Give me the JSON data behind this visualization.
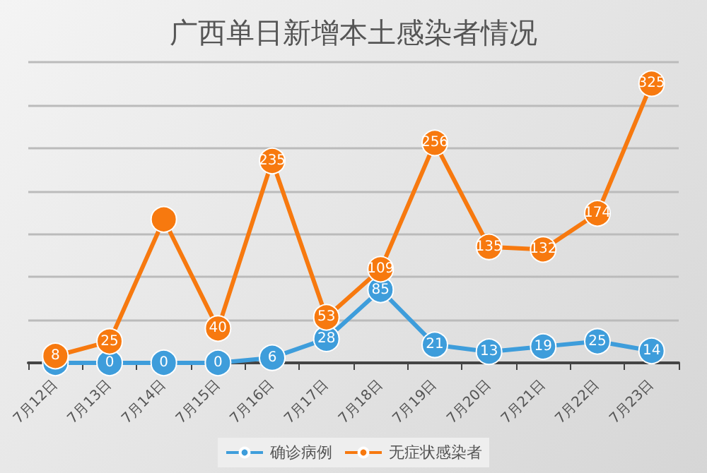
{
  "chart_data": {
    "type": "line",
    "title": "广西单日新增本土感染者情况",
    "categories": [
      "7月12日",
      "7月13日",
      "7月14日",
      "7月15日",
      "7月16日",
      "7月17日",
      "7月18日",
      "7月19日",
      "7月20日",
      "7月21日",
      "7月22日",
      "7月23日"
    ],
    "series": [
      {
        "name": "确诊病例",
        "color": "#3e9ddb",
        "values": [
          0,
          0,
          0,
          0,
          6,
          28,
          85,
          21,
          13,
          19,
          25,
          14
        ],
        "value_labels": [
          null,
          "0",
          "0",
          "0",
          "6",
          "28",
          "85",
          "21",
          "13",
          "19",
          "25",
          "14"
        ]
      },
      {
        "name": "无症状感染者",
        "color": "#f7790f",
        "values": [
          8,
          25,
          167,
          40,
          235,
          53,
          109,
          256,
          135,
          132,
          174,
          325
        ],
        "value_labels": [
          "8",
          "25",
          null,
          "40",
          "235",
          "53",
          "109",
          "256",
          "135",
          "132",
          "174",
          "325"
        ]
      }
    ],
    "ylim": [
      0,
      350
    ],
    "yticks": [
      {
        "value": 0,
        "label": null
      },
      {
        "value": 50,
        "label": null
      },
      {
        "value": 100,
        "label": null
      },
      {
        "value": 150,
        "label": null
      },
      {
        "value": 200,
        "label": null
      },
      {
        "value": 250,
        "label": null
      },
      {
        "value": 300,
        "label": null
      },
      {
        "value": 350,
        "label": null
      }
    ],
    "tick_labels": "x",
    "grid": "y",
    "legend": "bottom",
    "marker": "circle",
    "line_style": "solid"
  }
}
